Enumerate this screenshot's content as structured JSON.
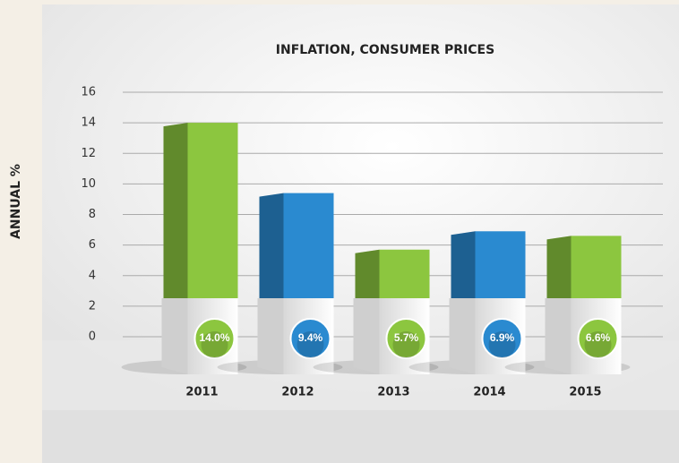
{
  "chart_data": {
    "type": "bar",
    "title": "INFLATION, CONSUMER PRICES",
    "y_label": "ANNUAL %",
    "categories": [
      "2011",
      "2012",
      "2013",
      "2014",
      "2015"
    ],
    "values": [
      14.0,
      9.4,
      5.7,
      6.9,
      6.6
    ],
    "value_labels": [
      "14.0%",
      "9.4%",
      "5.7%",
      "6.9%",
      "6.6%"
    ],
    "colors": [
      "#8cc63f",
      "#2a8ad0",
      "#8cc63f",
      "#2a8ad0",
      "#8cc63f"
    ],
    "ylim": [
      0,
      16
    ],
    "yticks": [
      0,
      2,
      4,
      6,
      8,
      10,
      12,
      14,
      16
    ],
    "grid": true
  }
}
